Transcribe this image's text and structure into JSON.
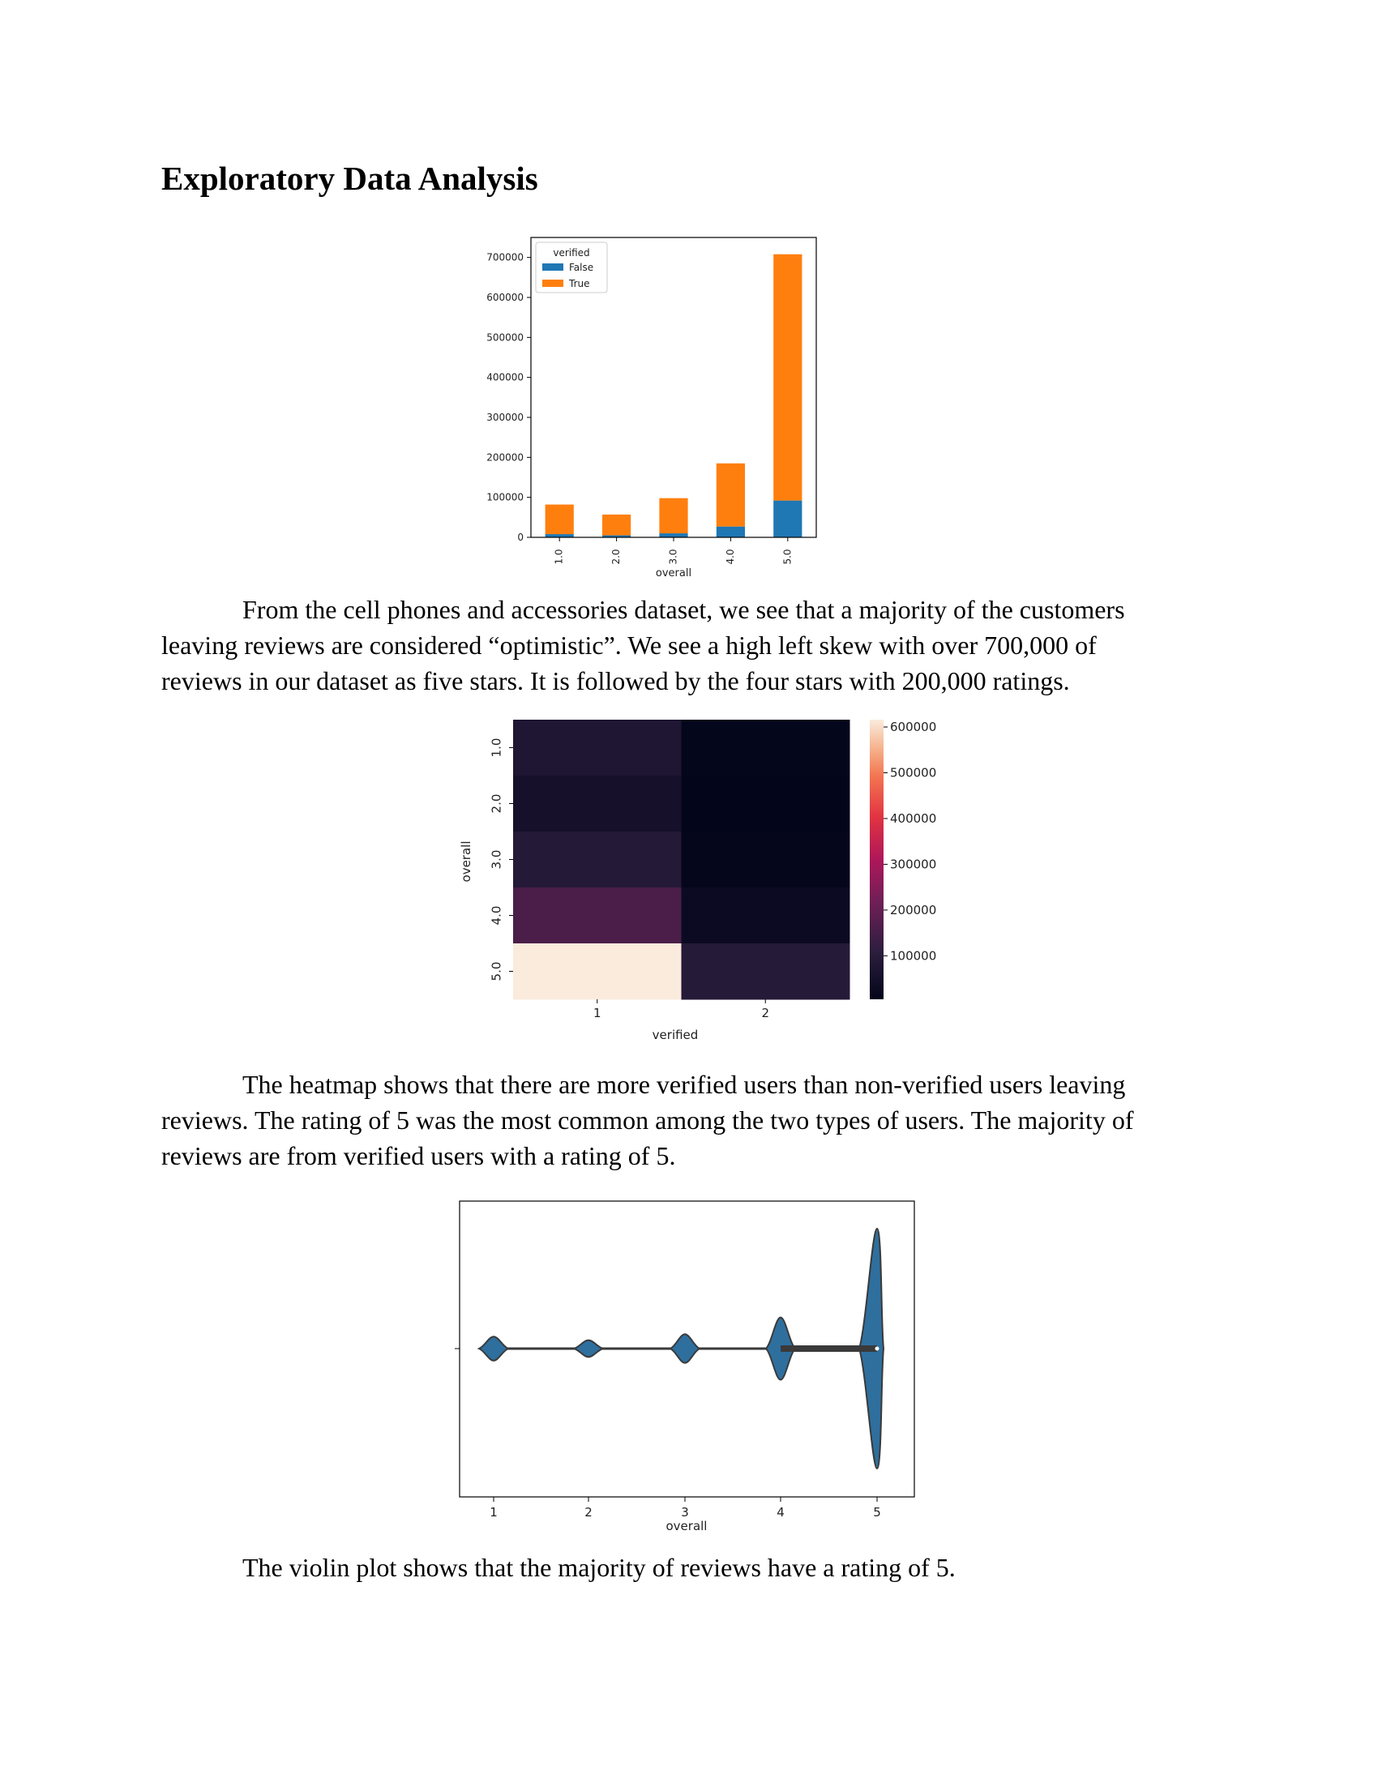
{
  "heading": "Exploratory Data Analysis",
  "paragraphs": [
    [
      "From the cell phones and accessories dataset, we see that a majority of the customers",
      "leaving reviews are considered “optimistic”. We see a high left skew with over 700,000 of",
      "reviews in our dataset as five stars. It is followed by the four stars with 200,000 ratings."
    ],
    [
      "The heatmap shows that there are more verified users than non-verified users leaving",
      "reviews. The rating of 5 was the most common among the two types of users. The majority of",
      "reviews are from verified users with a rating of 5."
    ],
    [
      "The violin plot shows that the majority of reviews have a rating of 5."
    ]
  ],
  "chart_data": [
    {
      "type": "bar",
      "stacked": true,
      "categories": [
        "1.0",
        "2.0",
        "3.0",
        "4.0",
        "5.0"
      ],
      "xlabel": "overall",
      "ylabel": "",
      "ylim": [
        0,
        750000
      ],
      "yticks": [
        "0",
        "100000",
        "200000",
        "300000",
        "400000",
        "500000",
        "600000",
        "700000"
      ],
      "legend_title": "verified",
      "legend_position": "top-left",
      "series": [
        {
          "name": "False",
          "color": "#1f77b4",
          "values": [
            8000,
            5000,
            10000,
            27000,
            92000
          ]
        },
        {
          "name": "True",
          "color": "#ff7f0e",
          "values": [
            74000,
            52000,
            88000,
            158000,
            616000
          ]
        }
      ]
    },
    {
      "type": "heatmap",
      "x_categories": [
        "1",
        "2"
      ],
      "y_categories": [
        "1.0",
        "2.0",
        "3.0",
        "4.0",
        "5.0"
      ],
      "xlabel": "verified",
      "ylabel": "overall",
      "values": [
        [
          74000,
          8000
        ],
        [
          52000,
          5000
        ],
        [
          88000,
          10000
        ],
        [
          158000,
          27000
        ],
        [
          616000,
          92000
        ]
      ],
      "colorbar_ticks": [
        "600000",
        "500000",
        "400000",
        "300000",
        "200000",
        "100000"
      ],
      "colormap": "rocket"
    },
    {
      "type": "violin",
      "orientation": "horizontal",
      "xlabel": "overall",
      "xticks": [
        "1",
        "2",
        "3",
        "4",
        "5"
      ],
      "color": "#2e6f9e",
      "relative_density": [
        0.1,
        0.07,
        0.12,
        0.26,
        1.0
      ]
    }
  ]
}
